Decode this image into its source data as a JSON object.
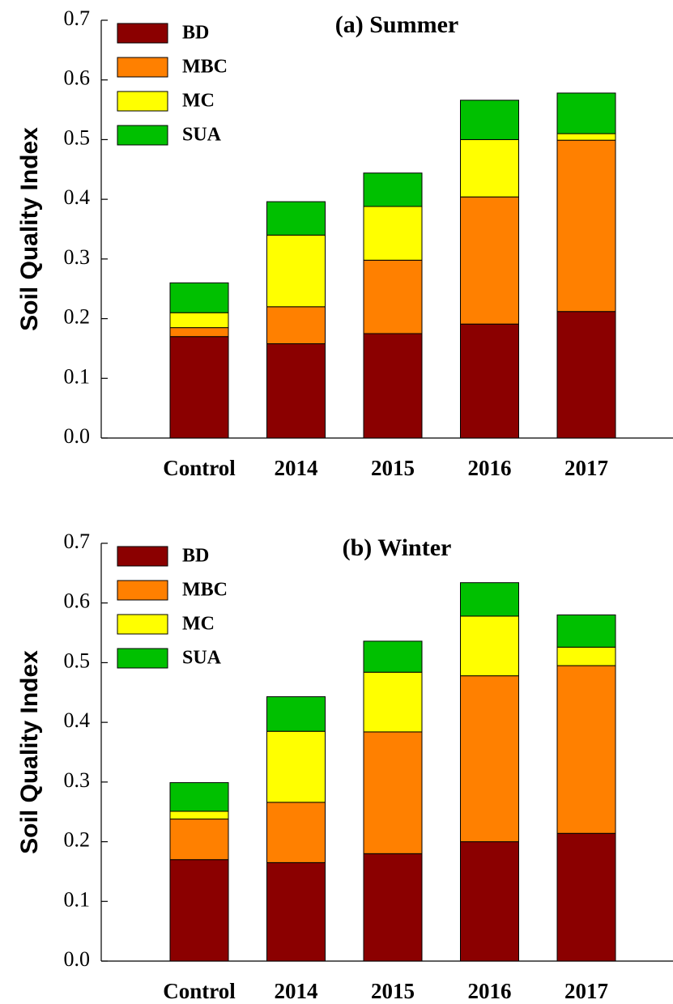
{
  "chart_data": [
    {
      "type": "stacked_bar",
      "title": "(a) Summer",
      "y_label": "Soil Quality Index",
      "categories": [
        "Control",
        "2014",
        "2015",
        "2016",
        "2017"
      ],
      "series": [
        {
          "name": "BD",
          "color": "#8b0000",
          "values": [
            0.17,
            0.158,
            0.175,
            0.191,
            0.212
          ]
        },
        {
          "name": "MBC",
          "color": "#ff8000",
          "values": [
            0.015,
            0.062,
            0.123,
            0.213,
            0.287
          ]
        },
        {
          "name": "MC",
          "color": "#ffff00",
          "values": [
            0.025,
            0.12,
            0.09,
            0.096,
            0.011
          ]
        },
        {
          "name": "SUA",
          "color": "#00c000",
          "values": [
            0.05,
            0.056,
            0.056,
            0.066,
            0.068
          ]
        }
      ],
      "ylim": [
        0,
        0.7
      ],
      "yticks": [
        {
          "value": 0,
          "label": "0.0"
        },
        0.1,
        0.2,
        0.3,
        0.4,
        0.5,
        0.6,
        0.7
      ],
      "legend": "upper left"
    },
    {
      "type": "stacked_bar",
      "title": "(b) Winter",
      "y_label": "Soil Quality Index",
      "categories": [
        "Control",
        "2014",
        "2015",
        "2016",
        "2017"
      ],
      "series": [
        {
          "name": "BD",
          "color": "#8b0000",
          "values": [
            0.17,
            0.165,
            0.18,
            0.2,
            0.214
          ]
        },
        {
          "name": "MBC",
          "color": "#ff8000",
          "values": [
            0.068,
            0.101,
            0.204,
            0.278,
            0.281
          ]
        },
        {
          "name": "MC",
          "color": "#ffff00",
          "values": [
            0.013,
            0.119,
            0.1,
            0.1,
            0.031
          ]
        },
        {
          "name": "SUA",
          "color": "#00c000",
          "values": [
            0.048,
            0.058,
            0.052,
            0.056,
            0.054
          ]
        }
      ],
      "ylim": [
        0,
        0.7
      ],
      "yticks": [
        {
          "value": 0,
          "label": "0.0"
        },
        0.1,
        0.2,
        0.3,
        0.4,
        0.5,
        0.6,
        0.7
      ],
      "legend": "upper left"
    }
  ]
}
